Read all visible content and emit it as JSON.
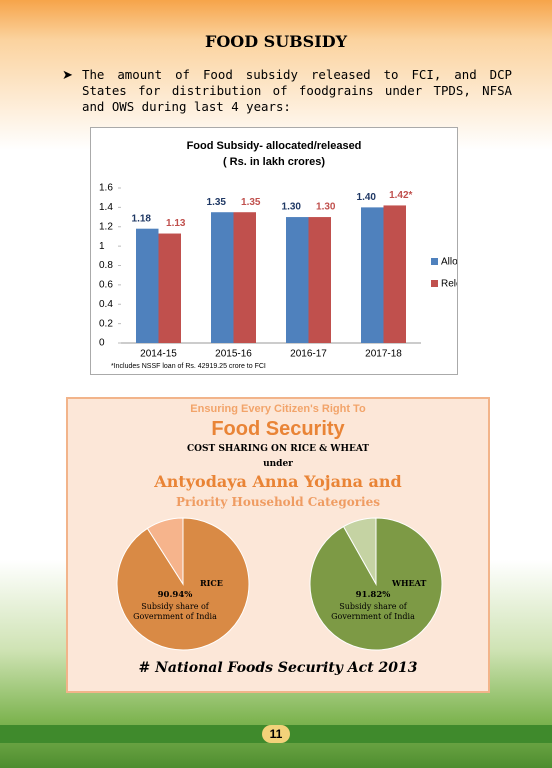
{
  "header": {
    "title": "FOOD SUBSIDY"
  },
  "paragraph": "The amount of Food subsidy released to FCI, and DCP States for distribution of foodgrains under TPDS, NFSA and OWS during last 4 years:",
  "chart_data": [
    {
      "type": "bar",
      "title": "Food Subsidy- allocated/released",
      "subtitle": "( Rs. in lakh crores)",
      "categories": [
        "2014-15",
        "2015-16",
        "2016-17",
        "2017-18"
      ],
      "series": [
        {
          "name": "Allocated",
          "color": "#4f81bd",
          "values": [
            1.18,
            1.35,
            1.3,
            1.4
          ],
          "value_labels": [
            "1.18",
            "1.35",
            "1.30",
            "1.40"
          ],
          "label_color": "#1f3864"
        },
        {
          "name": "Released",
          "color": "#c0504d",
          "values": [
            1.13,
            1.35,
            1.3,
            1.42
          ],
          "value_labels": [
            "1.13",
            "1.35",
            "1.30",
            "1.42*"
          ],
          "label_color": "#c0504d"
        }
      ],
      "ylim": [
        0,
        1.6
      ],
      "yticks": [
        0,
        0.2,
        0.4,
        0.6,
        0.8,
        1,
        1.2,
        1.4,
        1.6
      ],
      "grid": false,
      "legend": "right",
      "note": "*Includes NSSF loan of Rs. 42919.25 crore to FCI"
    },
    {
      "type": "pie",
      "label": "RICE",
      "categories": [
        "Subsidy share of Government of India",
        null
      ],
      "values": [
        90.94,
        9.06
      ],
      "value_labels": [
        "90.94%",
        null
      ],
      "colors": [
        "#d98a45",
        "#f6b48c"
      ]
    },
    {
      "type": "pie",
      "label": "WHEAT",
      "categories": [
        "Subsidy share of Government of India",
        null
      ],
      "values": [
        91.82,
        8.18
      ],
      "value_labels": [
        "91.82%",
        null
      ],
      "colors": [
        "#7d9a45",
        "#c5d3a3"
      ]
    }
  ],
  "infographic": {
    "kicker": "Ensuring Every Citizen's Right To",
    "heading": "Food Security",
    "line1": "COST SHARING ON RICE & WHEAT",
    "line2": "under",
    "scheme1": "Antyodaya Anna Yojana and",
    "scheme2": "Priority Household Categories",
    "footer": "# National Foods Security Act 2013"
  },
  "page_number": "11"
}
